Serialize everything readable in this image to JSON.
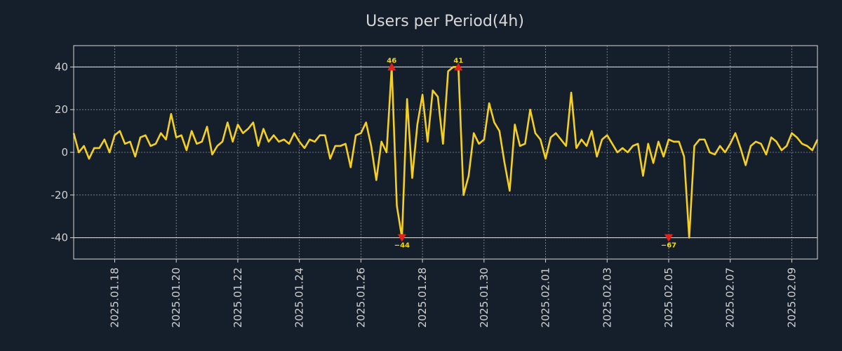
{
  "chart_data": {
    "type": "line",
    "title": "Users per Period(4h)",
    "xlabel": "",
    "ylabel": "",
    "x_start": "2025.01.16 16:00",
    "interval_hours": 4,
    "ylim": [
      -50,
      50
    ],
    "yticks": [
      -40,
      -20,
      0,
      20,
      40
    ],
    "xtick_labels": [
      "2025.01.18",
      "2025.01.20",
      "2025.01.22",
      "2025.01.24",
      "2025.01.26",
      "2025.01.28",
      "2025.01.30",
      "2025.02.01",
      "2025.02.03",
      "2025.02.05",
      "2025.02.07",
      "2025.02.09"
    ],
    "reference_lines": [
      40,
      -40
    ],
    "grid": true,
    "line_color": "#f5d020",
    "marker_color": "#e8201a",
    "series": [
      {
        "name": "Users",
        "values": [
          9,
          0,
          3,
          -3,
          2,
          2,
          6,
          0,
          8,
          10,
          4,
          5,
          -2,
          7,
          8,
          3,
          4,
          9,
          6,
          18,
          7,
          8,
          1,
          10,
          4,
          5,
          12,
          -1,
          3,
          5,
          14,
          5,
          13,
          9,
          11,
          14,
          3,
          11,
          5,
          8,
          5,
          6,
          4,
          9,
          5,
          2,
          6,
          5,
          8,
          8,
          -3,
          3,
          3,
          4,
          -7,
          8,
          9,
          14,
          3,
          -13,
          5,
          0,
          40,
          -25,
          -40,
          25,
          -12,
          13,
          27,
          5,
          29,
          26,
          4,
          38,
          40,
          40,
          -20,
          -11,
          9,
          4,
          6,
          23,
          14,
          10,
          -5,
          -18,
          13,
          3,
          4,
          20,
          9,
          6,
          -3,
          7,
          9,
          6,
          3,
          28,
          2,
          6,
          3,
          10,
          -2,
          6,
          8,
          4,
          0,
          2,
          0,
          3,
          4,
          -11,
          4,
          -5,
          5,
          -2,
          6,
          5,
          5,
          -2,
          -40,
          3,
          6,
          6,
          0,
          -1,
          3,
          0,
          4,
          9,
          2,
          -6,
          3,
          5,
          4,
          -1,
          7,
          5,
          1,
          3,
          9,
          7,
          4,
          3,
          1,
          6
        ]
      }
    ],
    "annotations": [
      {
        "index": 62,
        "value": 40,
        "label": "46",
        "marker": "up",
        "label_pos": "above"
      },
      {
        "index": 64,
        "value": -40,
        "label": "−44",
        "marker": "down",
        "label_pos": "below"
      },
      {
        "index": 75,
        "value": 40,
        "label": "41",
        "marker": "up",
        "label_pos": "above"
      },
      {
        "index": 116,
        "value": -40,
        "label": "−67",
        "marker": "down",
        "label_pos": "below"
      }
    ]
  }
}
